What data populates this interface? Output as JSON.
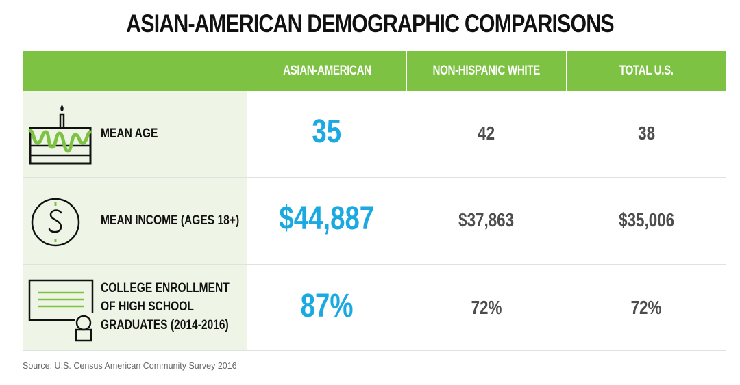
{
  "title": "ASIAN-AMERICAN DEMOGRAPHIC COMPARISONS",
  "columns": [
    "",
    "ASIAN-AMERICAN",
    "NON-HISPANIC WHITE",
    "TOTAL U.S."
  ],
  "rows": [
    {
      "label_lines": [
        "MEAN AGE"
      ],
      "icon": "birthday-cake-icon",
      "values": [
        "35",
        "42",
        "38"
      ]
    },
    {
      "label_lines": [
        "MEAN INCOME (AGES 18+)"
      ],
      "icon": "dollar-coin-icon",
      "values": [
        "$44,887",
        "$37,863",
        "$35,006"
      ]
    },
    {
      "label_lines": [
        "COLLEGE ENROLLMENT",
        "OF HIGH SCHOOL",
        "GRADUATES (2014-2016)"
      ],
      "icon": "diploma-certificate-icon",
      "values": [
        "87%",
        "72%",
        "72%"
      ]
    }
  ],
  "source": "Source: U.S. Census American Community Survey 2016",
  "colors": {
    "header": "#7dc242",
    "highlight": "#1ba9e1",
    "label_bg": "#eef4e6",
    "value": "#4d4d4d"
  },
  "chart_data": {
    "type": "table",
    "title": "ASIAN-AMERICAN DEMOGRAPHIC COMPARISONS",
    "columns": [
      "ASIAN-AMERICAN",
      "NON-HISPANIC WHITE",
      "TOTAL U.S."
    ],
    "rows": [
      {
        "label": "MEAN AGE",
        "values": [
          35,
          42,
          38
        ]
      },
      {
        "label": "MEAN INCOME (AGES 18+)",
        "values": [
          44887,
          37863,
          35006
        ]
      },
      {
        "label": "COLLEGE ENROLLMENT OF HIGH SCHOOL GRADUATES (2014-2016)",
        "values": [
          87,
          72,
          72
        ]
      }
    ]
  }
}
